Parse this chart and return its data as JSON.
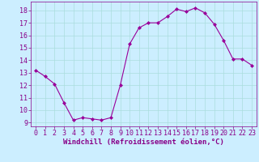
{
  "x": [
    0,
    1,
    2,
    3,
    4,
    5,
    6,
    7,
    8,
    9,
    10,
    11,
    12,
    13,
    14,
    15,
    16,
    17,
    18,
    19,
    20,
    21,
    22,
    23
  ],
  "y": [
    13.2,
    12.7,
    12.1,
    10.6,
    9.2,
    9.4,
    9.3,
    9.2,
    9.4,
    12.0,
    15.3,
    16.6,
    17.0,
    17.0,
    17.5,
    18.1,
    17.9,
    18.2,
    17.8,
    16.9,
    15.6,
    14.1,
    14.1,
    13.6
  ],
  "line_color": "#990099",
  "marker": "D",
  "markersize": 2,
  "linewidth": 0.8,
  "xlim": [
    -0.5,
    23.5
  ],
  "ylim": [
    8.7,
    18.7
  ],
  "yticks": [
    9,
    10,
    11,
    12,
    13,
    14,
    15,
    16,
    17,
    18
  ],
  "xticks": [
    0,
    1,
    2,
    3,
    4,
    5,
    6,
    7,
    8,
    9,
    10,
    11,
    12,
    13,
    14,
    15,
    16,
    17,
    18,
    19,
    20,
    21,
    22,
    23
  ],
  "xlabel": "Windchill (Refroidissement éolien,°C)",
  "xlabel_fontsize": 6.5,
  "grid_color": "#aadddd",
  "bg_color": "#cceeff",
  "tick_fontsize": 6,
  "tick_color": "#880088",
  "spine_color": "#880088"
}
